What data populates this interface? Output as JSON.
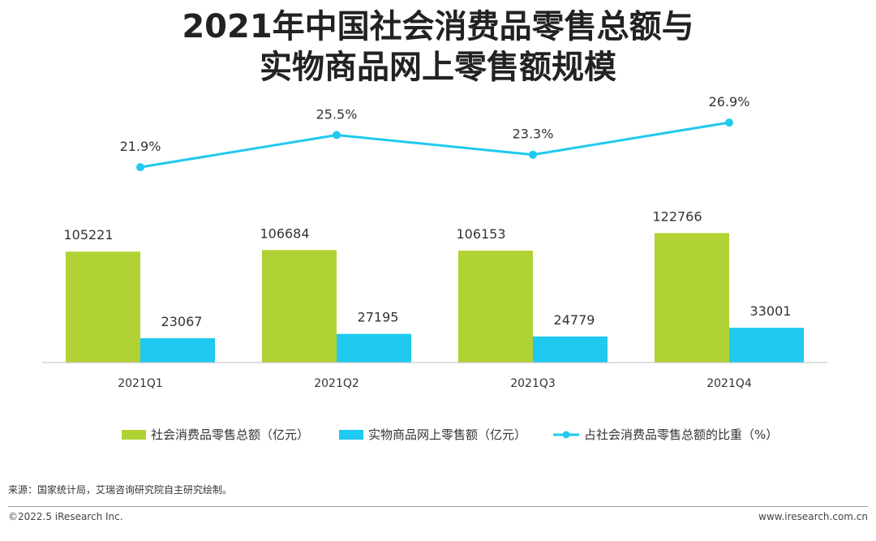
{
  "title_line1": "2021年中国社会消费品零售总额与",
  "title_line2": "实物商品网上零售额规模",
  "chart_data": {
    "type": "bar",
    "categories": [
      "2021Q1",
      "2021Q2",
      "2021Q3",
      "2021Q4"
    ],
    "series": [
      {
        "name": "社会消费品零售总额（亿元）",
        "type": "bar",
        "color": "#b1d234",
        "values": [
          105221,
          106684,
          106153,
          122766
        ],
        "labels": [
          "105221",
          "106684",
          "106153",
          "122766"
        ]
      },
      {
        "name": "实物商品网上零售额（亿元）",
        "type": "bar",
        "color": "#1fc9ef",
        "values": [
          23067,
          27195,
          24779,
          33001
        ],
        "labels": [
          "23067",
          "27195",
          "24779",
          "33001"
        ]
      },
      {
        "name": "占社会消费品零售总额的比重（%）",
        "type": "line",
        "color": "#1fc9ef",
        "values": [
          21.9,
          25.5,
          23.3,
          26.9
        ],
        "labels": [
          "21.9%",
          "25.5%",
          "23.3%",
          "26.9%"
        ]
      }
    ],
    "ylim": [
      0,
      190000
    ],
    "y2lim": [
      0,
      37
    ],
    "legend_position": "bottom",
    "grid": false
  },
  "footer": {
    "source": "来源：国家统计局，艾瑞咨询研究院自主研究绘制。",
    "copyright": "©2022.5 iResearch Inc.",
    "website": "www.iresearch.com.cn"
  }
}
